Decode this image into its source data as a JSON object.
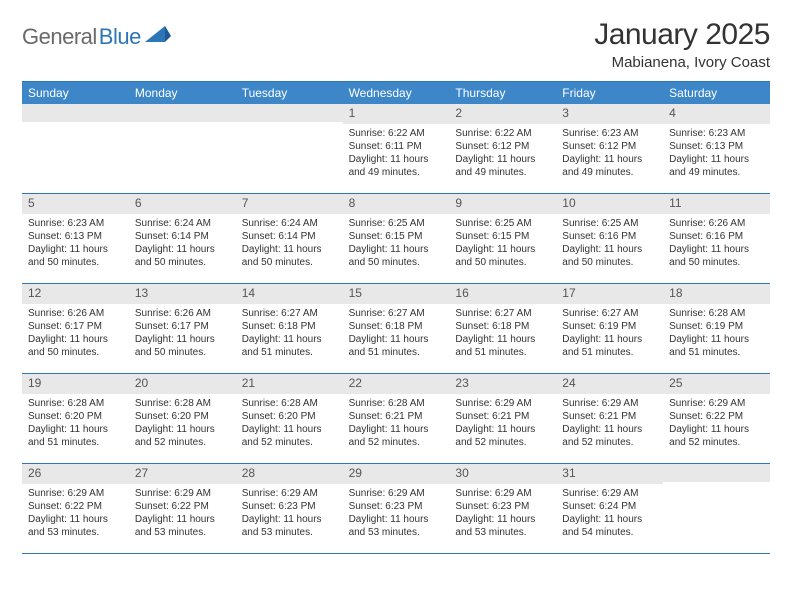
{
  "brand": {
    "part1": "General",
    "part2": "Blue"
  },
  "title": "January 2025",
  "location": "Mabianena, Ivory Coast",
  "colors": {
    "header_bg": "#3d87c9",
    "border": "#2d76b8",
    "daynum_bg": "#e8e8e8",
    "text": "#333333",
    "logo_gray": "#6a6a6a",
    "logo_blue": "#2d76b8"
  },
  "weekdays": [
    "Sunday",
    "Monday",
    "Tuesday",
    "Wednesday",
    "Thursday",
    "Friday",
    "Saturday"
  ],
  "weeks": [
    [
      null,
      null,
      null,
      {
        "n": 1,
        "sr": "6:22 AM",
        "ss": "6:11 PM",
        "dl": "11 hours and 49 minutes."
      },
      {
        "n": 2,
        "sr": "6:22 AM",
        "ss": "6:12 PM",
        "dl": "11 hours and 49 minutes."
      },
      {
        "n": 3,
        "sr": "6:23 AM",
        "ss": "6:12 PM",
        "dl": "11 hours and 49 minutes."
      },
      {
        "n": 4,
        "sr": "6:23 AM",
        "ss": "6:13 PM",
        "dl": "11 hours and 49 minutes."
      }
    ],
    [
      {
        "n": 5,
        "sr": "6:23 AM",
        "ss": "6:13 PM",
        "dl": "11 hours and 50 minutes."
      },
      {
        "n": 6,
        "sr": "6:24 AM",
        "ss": "6:14 PM",
        "dl": "11 hours and 50 minutes."
      },
      {
        "n": 7,
        "sr": "6:24 AM",
        "ss": "6:14 PM",
        "dl": "11 hours and 50 minutes."
      },
      {
        "n": 8,
        "sr": "6:25 AM",
        "ss": "6:15 PM",
        "dl": "11 hours and 50 minutes."
      },
      {
        "n": 9,
        "sr": "6:25 AM",
        "ss": "6:15 PM",
        "dl": "11 hours and 50 minutes."
      },
      {
        "n": 10,
        "sr": "6:25 AM",
        "ss": "6:16 PM",
        "dl": "11 hours and 50 minutes."
      },
      {
        "n": 11,
        "sr": "6:26 AM",
        "ss": "6:16 PM",
        "dl": "11 hours and 50 minutes."
      }
    ],
    [
      {
        "n": 12,
        "sr": "6:26 AM",
        "ss": "6:17 PM",
        "dl": "11 hours and 50 minutes."
      },
      {
        "n": 13,
        "sr": "6:26 AM",
        "ss": "6:17 PM",
        "dl": "11 hours and 50 minutes."
      },
      {
        "n": 14,
        "sr": "6:27 AM",
        "ss": "6:18 PM",
        "dl": "11 hours and 51 minutes."
      },
      {
        "n": 15,
        "sr": "6:27 AM",
        "ss": "6:18 PM",
        "dl": "11 hours and 51 minutes."
      },
      {
        "n": 16,
        "sr": "6:27 AM",
        "ss": "6:18 PM",
        "dl": "11 hours and 51 minutes."
      },
      {
        "n": 17,
        "sr": "6:27 AM",
        "ss": "6:19 PM",
        "dl": "11 hours and 51 minutes."
      },
      {
        "n": 18,
        "sr": "6:28 AM",
        "ss": "6:19 PM",
        "dl": "11 hours and 51 minutes."
      }
    ],
    [
      {
        "n": 19,
        "sr": "6:28 AM",
        "ss": "6:20 PM",
        "dl": "11 hours and 51 minutes."
      },
      {
        "n": 20,
        "sr": "6:28 AM",
        "ss": "6:20 PM",
        "dl": "11 hours and 52 minutes."
      },
      {
        "n": 21,
        "sr": "6:28 AM",
        "ss": "6:20 PM",
        "dl": "11 hours and 52 minutes."
      },
      {
        "n": 22,
        "sr": "6:28 AM",
        "ss": "6:21 PM",
        "dl": "11 hours and 52 minutes."
      },
      {
        "n": 23,
        "sr": "6:29 AM",
        "ss": "6:21 PM",
        "dl": "11 hours and 52 minutes."
      },
      {
        "n": 24,
        "sr": "6:29 AM",
        "ss": "6:21 PM",
        "dl": "11 hours and 52 minutes."
      },
      {
        "n": 25,
        "sr": "6:29 AM",
        "ss": "6:22 PM",
        "dl": "11 hours and 52 minutes."
      }
    ],
    [
      {
        "n": 26,
        "sr": "6:29 AM",
        "ss": "6:22 PM",
        "dl": "11 hours and 53 minutes."
      },
      {
        "n": 27,
        "sr": "6:29 AM",
        "ss": "6:22 PM",
        "dl": "11 hours and 53 minutes."
      },
      {
        "n": 28,
        "sr": "6:29 AM",
        "ss": "6:23 PM",
        "dl": "11 hours and 53 minutes."
      },
      {
        "n": 29,
        "sr": "6:29 AM",
        "ss": "6:23 PM",
        "dl": "11 hours and 53 minutes."
      },
      {
        "n": 30,
        "sr": "6:29 AM",
        "ss": "6:23 PM",
        "dl": "11 hours and 53 minutes."
      },
      {
        "n": 31,
        "sr": "6:29 AM",
        "ss": "6:24 PM",
        "dl": "11 hours and 54 minutes."
      },
      null
    ]
  ],
  "labels": {
    "sunrise": "Sunrise:",
    "sunset": "Sunset:",
    "daylight": "Daylight:"
  }
}
